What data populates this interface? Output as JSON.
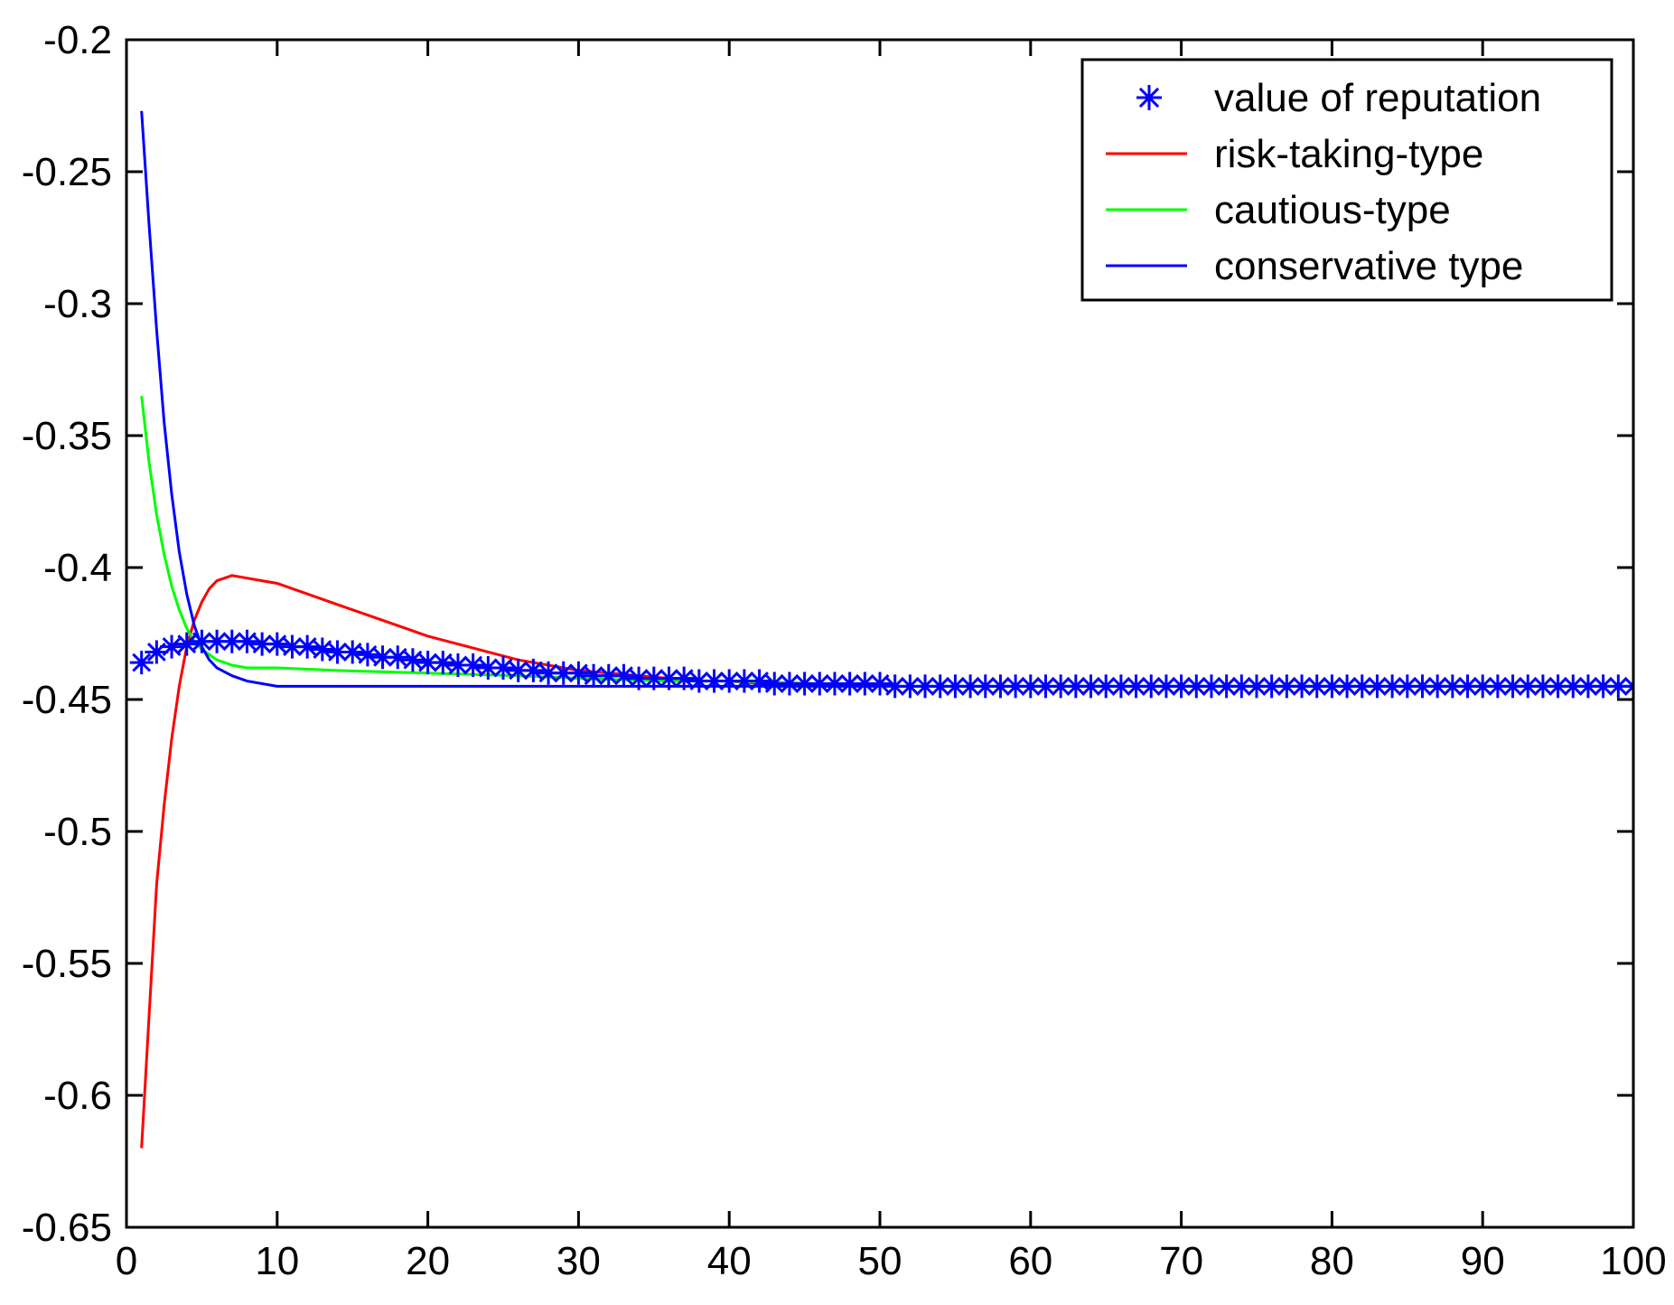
{
  "chart_data": {
    "type": "line",
    "title": "",
    "xlabel": "",
    "ylabel": "",
    "xlim": [
      0,
      100
    ],
    "ylim": [
      -0.65,
      -0.2
    ],
    "xticks": [
      0,
      10,
      20,
      30,
      40,
      50,
      60,
      70,
      80,
      90,
      100
    ],
    "yticks": [
      -0.2,
      -0.25,
      -0.3,
      -0.35,
      -0.4,
      -0.45,
      -0.5,
      -0.55,
      -0.6,
      -0.65
    ],
    "xtick_labels": [
      "0",
      "10",
      "20",
      "30",
      "40",
      "50",
      "60",
      "70",
      "80",
      "90",
      "100"
    ],
    "ytick_labels": [
      "-0.2",
      "-0.25",
      "-0.3",
      "-0.35",
      "-0.4",
      "-0.45",
      "-0.5",
      "-0.55",
      "-0.6",
      "-0.65"
    ],
    "grid": false,
    "legend_position": "top-right",
    "series": [
      {
        "name": "value of reputation",
        "color": "#0000ff",
        "style": "markers",
        "marker": "asterisk",
        "x": [
          1,
          2,
          3,
          4,
          5,
          6,
          7,
          8,
          9,
          10,
          11,
          12,
          13,
          14,
          15,
          16,
          17,
          18,
          19,
          20,
          21,
          22,
          23,
          24,
          25,
          26,
          27,
          28,
          29,
          30,
          31,
          32,
          33,
          34,
          35,
          36,
          37,
          38,
          39,
          40,
          41,
          42,
          43,
          44,
          45,
          46,
          47,
          48,
          49,
          50,
          51,
          52,
          53,
          54,
          55,
          56,
          57,
          58,
          59,
          60,
          61,
          62,
          63,
          64,
          65,
          66,
          67,
          68,
          69,
          70,
          71,
          72,
          73,
          74,
          75,
          76,
          77,
          78,
          79,
          80,
          81,
          82,
          83,
          84,
          85,
          86,
          87,
          88,
          89,
          90,
          91,
          92,
          93,
          94,
          95,
          96,
          97,
          98,
          99,
          100
        ],
        "y": [
          -0.436,
          -0.432,
          -0.43,
          -0.429,
          -0.428,
          -0.428,
          -0.428,
          -0.428,
          -0.429,
          -0.429,
          -0.43,
          -0.43,
          -0.431,
          -0.432,
          -0.432,
          -0.433,
          -0.434,
          -0.434,
          -0.435,
          -0.436,
          -0.436,
          -0.437,
          -0.437,
          -0.438,
          -0.438,
          -0.439,
          -0.439,
          -0.44,
          -0.44,
          -0.44,
          -0.441,
          -0.441,
          -0.441,
          -0.442,
          -0.442,
          -0.442,
          -0.442,
          -0.443,
          -0.443,
          -0.443,
          -0.443,
          -0.443,
          -0.444,
          -0.444,
          -0.444,
          -0.444,
          -0.444,
          -0.444,
          -0.444,
          -0.444,
          -0.445,
          -0.445,
          -0.445,
          -0.445,
          -0.445,
          -0.445,
          -0.445,
          -0.445,
          -0.445,
          -0.445,
          -0.445,
          -0.445,
          -0.445,
          -0.445,
          -0.445,
          -0.445,
          -0.445,
          -0.445,
          -0.445,
          -0.445,
          -0.445,
          -0.445,
          -0.445,
          -0.445,
          -0.445,
          -0.445,
          -0.445,
          -0.445,
          -0.445,
          -0.445,
          -0.445,
          -0.445,
          -0.445,
          -0.445,
          -0.445,
          -0.445,
          -0.445,
          -0.445,
          -0.445,
          -0.445,
          -0.445,
          -0.445,
          -0.445,
          -0.445,
          -0.445,
          -0.445,
          -0.445,
          -0.445,
          -0.445,
          -0.445
        ]
      },
      {
        "name": "risk-taking-type",
        "color": "#ff0000",
        "style": "line",
        "x": [
          1,
          1.5,
          2,
          2.5,
          3,
          3.5,
          4,
          4.5,
          5,
          5.5,
          6,
          7,
          8,
          9,
          10,
          12,
          14,
          16,
          18,
          20,
          22,
          24,
          26,
          28,
          30,
          32,
          34,
          36,
          38,
          40,
          42,
          44,
          46,
          48,
          50
        ],
        "y": [
          -0.62,
          -0.57,
          -0.52,
          -0.49,
          -0.465,
          -0.445,
          -0.43,
          -0.42,
          -0.413,
          -0.408,
          -0.405,
          -0.403,
          -0.404,
          -0.405,
          -0.406,
          -0.41,
          -0.414,
          -0.418,
          -0.422,
          -0.426,
          -0.429,
          -0.432,
          -0.435,
          -0.437,
          -0.439,
          -0.44,
          -0.441,
          -0.442,
          -0.443,
          -0.443,
          -0.444,
          -0.444,
          -0.444,
          -0.444,
          -0.444
        ]
      },
      {
        "name": "cautious-type",
        "color": "#00ff00",
        "style": "line",
        "x": [
          1,
          1.5,
          2,
          2.5,
          3,
          3.5,
          4,
          4.5,
          5,
          5.5,
          6,
          7,
          8,
          10,
          14,
          20,
          26,
          30,
          36,
          40,
          46,
          50
        ],
        "y": [
          -0.335,
          -0.36,
          -0.38,
          -0.395,
          -0.407,
          -0.416,
          -0.423,
          -0.428,
          -0.431,
          -0.433,
          -0.435,
          -0.437,
          -0.438,
          -0.438,
          -0.439,
          -0.44,
          -0.441,
          -0.442,
          -0.443,
          -0.443,
          -0.444,
          -0.444
        ]
      },
      {
        "name": "conservative type",
        "color": "#0000ff",
        "style": "line",
        "x": [
          1,
          1.5,
          2,
          2.5,
          3,
          3.5,
          4,
          4.5,
          5,
          5.5,
          6,
          7,
          8,
          10,
          14,
          20,
          26,
          30,
          36,
          40,
          46,
          50
        ],
        "y": [
          -0.227,
          -0.27,
          -0.31,
          -0.345,
          -0.372,
          -0.394,
          -0.41,
          -0.422,
          -0.43,
          -0.435,
          -0.438,
          -0.441,
          -0.443,
          -0.445,
          -0.445,
          -0.445,
          -0.445,
          -0.445,
          -0.445,
          -0.445,
          -0.445,
          -0.445
        ]
      }
    ]
  }
}
